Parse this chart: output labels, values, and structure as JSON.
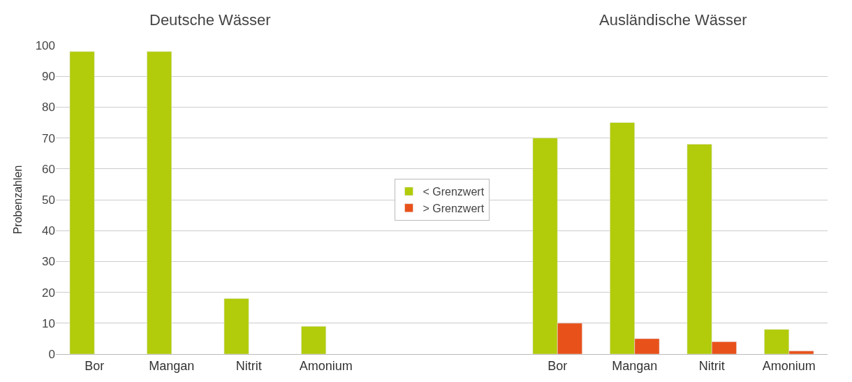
{
  "chart_data": {
    "type": "bar",
    "categories": [
      "Bor",
      "Mangan",
      "Nitrit",
      "Amonium",
      null,
      null,
      "Bor",
      "Mangan",
      "Nitrit",
      "Amonium"
    ],
    "series": [
      {
        "name": "< Grenzwert",
        "color": "#b2cb0a",
        "values": [
          98,
          98,
          18,
          9,
          null,
          null,
          70,
          75,
          68,
          8
        ]
      },
      {
        "name": "> Grenzwert",
        "color": "#e8521a",
        "values": [
          null,
          null,
          null,
          null,
          null,
          null,
          10,
          5,
          4,
          1
        ]
      }
    ],
    "ylabel": "Probenzahlen",
    "annotations": [
      "Deutsche Wässer",
      "Ausländische Wässer"
    ],
    "ylim": [
      0,
      100
    ],
    "yticks": [
      0,
      10,
      20,
      30,
      40,
      50,
      60,
      70,
      80,
      90,
      100
    ],
    "grid": "y",
    "legend": "center"
  }
}
